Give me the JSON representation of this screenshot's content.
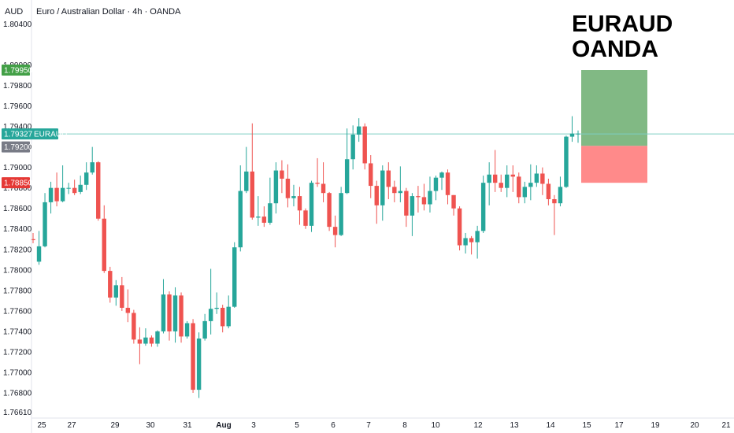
{
  "header": {
    "currency_label": "AUD",
    "instrument": "Euro / Australian Dollar · 4h · OANDA"
  },
  "overlay_title": [
    "EURAUD",
    "OANDA"
  ],
  "colors": {
    "up": "#26a69a",
    "down": "#ef5350",
    "tp_zone": "#81b984",
    "sl_zone": "#ff8a8a",
    "tp_tag": "#43a047",
    "sl_tag": "#e53935",
    "price_tag": "#26a69a",
    "level_tag": "#787b86",
    "price_line": "#7dcfc3"
  },
  "chart_data": {
    "type": "candlestick",
    "symbol": "EURAUD",
    "exchange": "OANDA",
    "timeframe": "4h",
    "y_axis": {
      "ticks": [
        1.7661,
        1.768,
        1.77,
        1.772,
        1.774,
        1.776,
        1.778,
        1.78,
        1.782,
        1.784,
        1.786,
        1.788,
        1.79,
        1.792,
        1.794,
        1.796,
        1.798,
        1.8,
        1.804
      ],
      "tick_labels": [
        "1.76610",
        "1.76800",
        "1.77000",
        "1.77200",
        "1.77400",
        "1.77600",
        "1.77800",
        "1.78000",
        "1.78200",
        "1.78400",
        "1.78600",
        "1.78800",
        "1.79000",
        "1.79200",
        "1.79400",
        "1.79600",
        "1.79800",
        "1.80000",
        "1.80400"
      ]
    },
    "x_axis": {
      "labels": [
        "25",
        "27",
        "29",
        "30",
        "31",
        "Aug",
        "3",
        "5",
        "6",
        "7",
        "8",
        "10",
        "12",
        "13",
        "14",
        "15",
        "17",
        "19",
        "20",
        "21"
      ]
    },
    "current_price": {
      "value": 1.79327,
      "label": "1.79327",
      "name": "EURAUD"
    },
    "level_marker": {
      "value": 1.792,
      "label": "1.79200"
    },
    "take_profit": {
      "value": 1.7995,
      "label": "1.79950"
    },
    "stop_loss": {
      "value": 1.7885,
      "label": "1.78850"
    },
    "entry": 1.7921,
    "candles": [
      [
        1.783,
        1.7829,
        1.7836,
        1.7826
      ],
      [
        1.7808,
        1.7823,
        1.7838,
        1.7805
      ],
      [
        1.7823,
        1.7866,
        1.7875,
        1.7822
      ],
      [
        1.7866,
        1.788,
        1.7886,
        1.7855
      ],
      [
        1.788,
        1.7867,
        1.7895,
        1.7862
      ],
      [
        1.7867,
        1.788,
        1.7902,
        1.7866
      ],
      [
        1.788,
        1.788,
        1.7885,
        1.7874
      ],
      [
        1.788,
        1.7875,
        1.7888,
        1.7873
      ],
      [
        1.7876,
        1.7883,
        1.7892,
        1.7874
      ],
      [
        1.7883,
        1.7895,
        1.7905,
        1.7878
      ],
      [
        1.7895,
        1.7905,
        1.792,
        1.7893
      ],
      [
        1.7905,
        1.785,
        1.7906,
        1.7848
      ],
      [
        1.785,
        1.7799,
        1.7863,
        1.7797
      ],
      [
        1.7799,
        1.7773,
        1.7803,
        1.7768
      ],
      [
        1.7773,
        1.7785,
        1.779,
        1.7765
      ],
      [
        1.7785,
        1.7763,
        1.7793,
        1.776
      ],
      [
        1.7763,
        1.7758,
        1.7781,
        1.7749
      ],
      [
        1.7758,
        1.7732,
        1.7761,
        1.7728
      ],
      [
        1.7732,
        1.7728,
        1.7744,
        1.7708
      ],
      [
        1.7728,
        1.7734,
        1.7743,
        1.7726
      ],
      [
        1.7734,
        1.7728,
        1.7736,
        1.7725
      ],
      [
        1.7728,
        1.774,
        1.7741,
        1.7725
      ],
      [
        1.774,
        1.7776,
        1.7791,
        1.7738
      ],
      [
        1.7776,
        1.774,
        1.7779,
        1.7731
      ],
      [
        1.774,
        1.7775,
        1.7783,
        1.7729
      ],
      [
        1.7775,
        1.7735,
        1.7778,
        1.7729
      ],
      [
        1.7735,
        1.7748,
        1.775,
        1.7733
      ],
      [
        1.7748,
        1.7683,
        1.7752,
        1.768
      ],
      [
        1.7683,
        1.7733,
        1.7739,
        1.7675
      ],
      [
        1.7733,
        1.775,
        1.7757,
        1.7731
      ],
      [
        1.775,
        1.7762,
        1.7801,
        1.7737
      ],
      [
        1.7762,
        1.7763,
        1.7778,
        1.7757
      ],
      [
        1.7763,
        1.7745,
        1.7766,
        1.7739
      ],
      [
        1.7745,
        1.7764,
        1.7775,
        1.7743
      ],
      [
        1.7764,
        1.7822,
        1.7827,
        1.7763
      ],
      [
        1.7822,
        1.7877,
        1.7902,
        1.7818
      ],
      [
        1.7877,
        1.7896,
        1.792,
        1.7875
      ],
      [
        1.7896,
        1.7851,
        1.7943,
        1.7849
      ],
      [
        1.7851,
        1.7852,
        1.7872,
        1.7843
      ],
      [
        1.7852,
        1.7846,
        1.7862,
        1.7842
      ],
      [
        1.7846,
        1.7865,
        1.789,
        1.7844
      ],
      [
        1.7865,
        1.7897,
        1.7905,
        1.7855
      ],
      [
        1.7897,
        1.7889,
        1.7907,
        1.7875
      ],
      [
        1.7889,
        1.787,
        1.7903,
        1.7861
      ],
      [
        1.787,
        1.7872,
        1.7883,
        1.7862
      ],
      [
        1.7872,
        1.7858,
        1.7881,
        1.7844
      ],
      [
        1.7858,
        1.7843,
        1.786,
        1.784
      ],
      [
        1.7843,
        1.7885,
        1.7887,
        1.7837
      ],
      [
        1.7885,
        1.7884,
        1.7909,
        1.7881
      ],
      [
        1.7884,
        1.7875,
        1.7905,
        1.7866
      ],
      [
        1.7875,
        1.7842,
        1.7876,
        1.7838
      ],
      [
        1.7842,
        1.7834,
        1.7853,
        1.7822
      ],
      [
        1.7834,
        1.7875,
        1.7881,
        1.7833
      ],
      [
        1.7875,
        1.7908,
        1.7938,
        1.7874
      ],
      [
        1.7908,
        1.7932,
        1.7941,
        1.7898
      ],
      [
        1.7932,
        1.794,
        1.7948,
        1.7925
      ],
      [
        1.794,
        1.7904,
        1.7943,
        1.7898
      ],
      [
        1.7904,
        1.7882,
        1.7912,
        1.787
      ],
      [
        1.7882,
        1.7863,
        1.7887,
        1.7845
      ],
      [
        1.7863,
        1.7897,
        1.7902,
        1.7848
      ],
      [
        1.7897,
        1.7881,
        1.7905,
        1.7869
      ],
      [
        1.7881,
        1.7875,
        1.7887,
        1.7866
      ],
      [
        1.7875,
        1.7877,
        1.7901,
        1.7866
      ],
      [
        1.7877,
        1.7853,
        1.788,
        1.7842
      ],
      [
        1.7853,
        1.7872,
        1.7875,
        1.7833
      ],
      [
        1.7872,
        1.7871,
        1.7882,
        1.7856
      ],
      [
        1.7871,
        1.7864,
        1.7884,
        1.7858
      ],
      [
        1.7864,
        1.7877,
        1.7891,
        1.7856
      ],
      [
        1.7877,
        1.789,
        1.7892,
        1.7868
      ],
      [
        1.789,
        1.7895,
        1.7896,
        1.7878
      ],
      [
        1.7895,
        1.7873,
        1.7898,
        1.7864
      ],
      [
        1.7873,
        1.786,
        1.7873,
        1.7853
      ],
      [
        1.786,
        1.7824,
        1.7862,
        1.7819
      ],
      [
        1.7824,
        1.7831,
        1.7836,
        1.7816
      ],
      [
        1.7831,
        1.7827,
        1.7833,
        1.7815
      ],
      [
        1.7827,
        1.7838,
        1.7843,
        1.7811
      ],
      [
        1.7838,
        1.7885,
        1.7892,
        1.7836
      ],
      [
        1.7885,
        1.7893,
        1.7905,
        1.7863
      ],
      [
        1.7893,
        1.7885,
        1.7917,
        1.7876
      ],
      [
        1.7885,
        1.788,
        1.7893,
        1.7876
      ],
      [
        1.788,
        1.7893,
        1.7902,
        1.7871
      ],
      [
        1.7893,
        1.7891,
        1.7902,
        1.7876
      ],
      [
        1.7891,
        1.7871,
        1.7895,
        1.7865
      ],
      [
        1.7871,
        1.7881,
        1.7886,
        1.7865
      ],
      [
        1.7881,
        1.7885,
        1.7903,
        1.7868
      ],
      [
        1.7885,
        1.7894,
        1.7902,
        1.7881
      ],
      [
        1.7894,
        1.7884,
        1.79,
        1.7873
      ],
      [
        1.7884,
        1.7869,
        1.7889,
        1.7863
      ],
      [
        1.7869,
        1.7865,
        1.7873,
        1.7834
      ],
      [
        1.7865,
        1.7881,
        1.7891,
        1.7862
      ],
      [
        1.7881,
        1.793,
        1.7931,
        1.788
      ],
      [
        1.793,
        1.7933,
        1.795,
        1.7925
      ],
      [
        1.7933,
        1.7933,
        1.7936,
        1.7924
      ]
    ]
  }
}
